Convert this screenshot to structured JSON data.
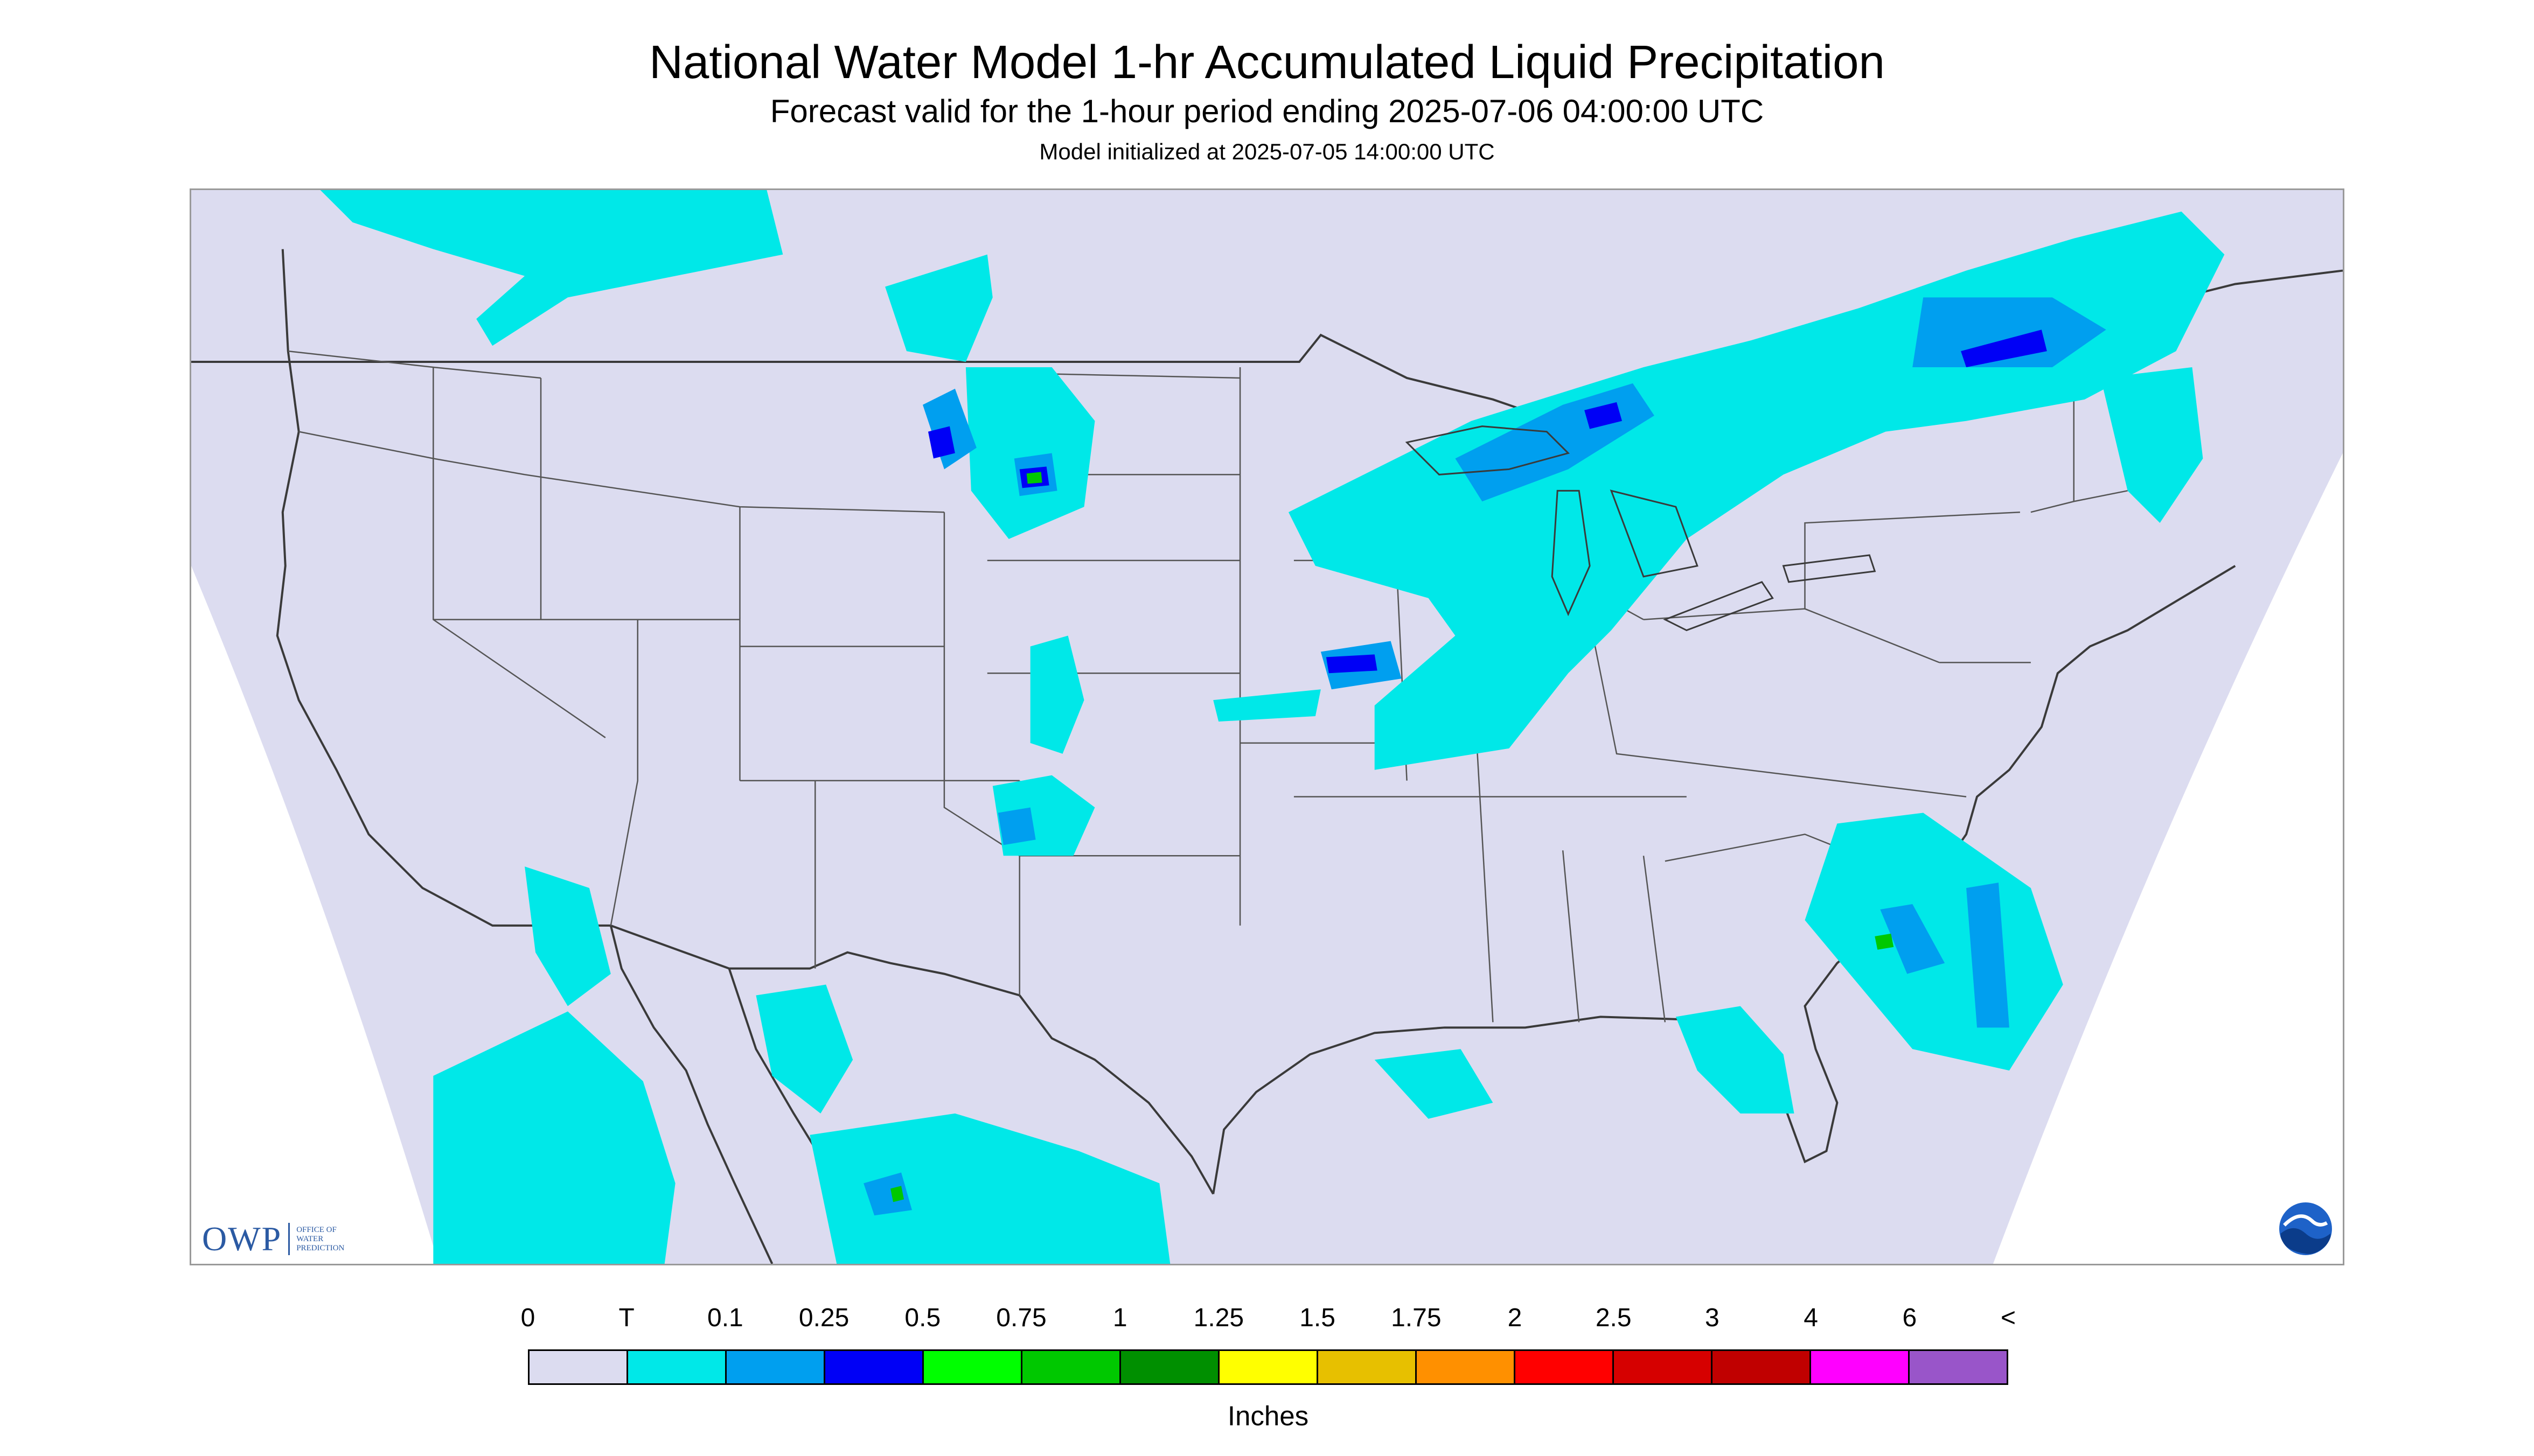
{
  "header": {
    "title": "National Water Model 1-hr Accumulated Liquid Precipitation",
    "subtitle": "Forecast valid for the 1-hour period ending 2025-07-06 04:00:00 UTC",
    "init_line": "Model initialized at 2025-07-05 14:00:00 UTC"
  },
  "map": {
    "background_color": "#dcdcf0",
    "outside_domain_color": "#ffffff",
    "boundary_color": "#3a3a3a",
    "logos": {
      "owp_letters": "OWP",
      "owp_text": "OFFICE OF\nWATER\nPREDICTION",
      "noaa_icon": "noaa-emblem-icon"
    }
  },
  "legend": {
    "tick_labels": [
      "0",
      "T",
      "0.1",
      "0.25",
      "0.5",
      "0.75",
      "1",
      "1.25",
      "1.5",
      "1.75",
      "2",
      "2.5",
      "3",
      "4",
      "6",
      "<"
    ],
    "colors": [
      "#dcdcf0",
      "#00e8e8",
      "#009fef",
      "#0000f6",
      "#00ff00",
      "#00c800",
      "#008f00",
      "#ffff00",
      "#e7c000",
      "#ff9000",
      "#ff0000",
      "#d60000",
      "#c00000",
      "#ff00ff",
      "#9955c9"
    ],
    "units": "Inches"
  }
}
